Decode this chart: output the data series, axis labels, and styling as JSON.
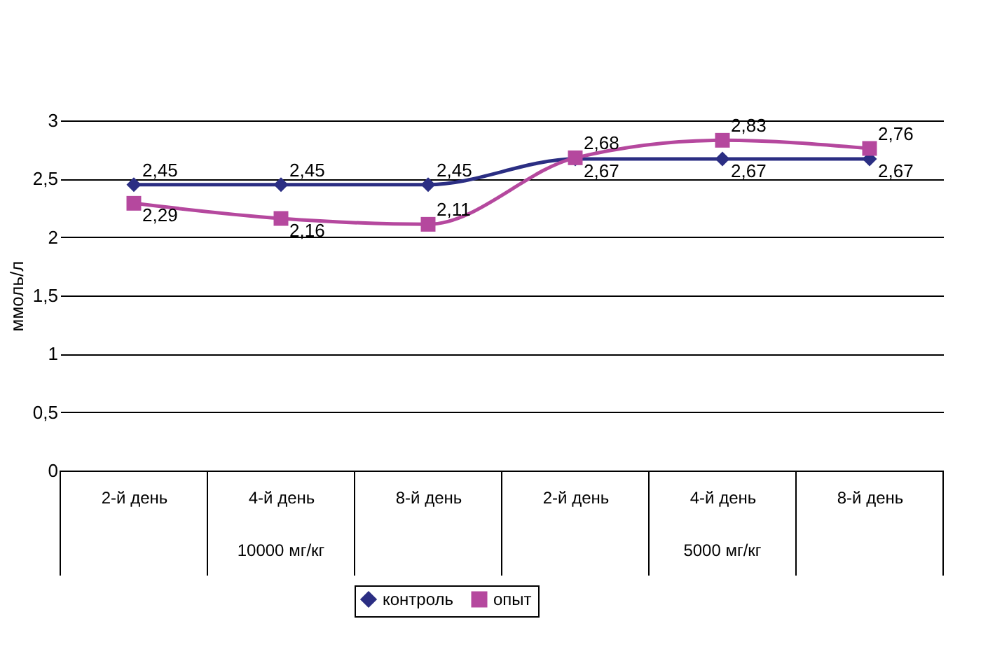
{
  "chart_data": {
    "type": "line",
    "ylabel": "ммоль/л",
    "categories": [
      "2-й день",
      "4-й день",
      "8-й день",
      "2-й день",
      "4-й день",
      "8-й день"
    ],
    "annotations": [
      "10000 мг/кг",
      "5000 мг/кг"
    ],
    "series": [
      {
        "name": "контроль",
        "color": "#2b2e83",
        "marker": "diamond",
        "values": [
          2.45,
          2.45,
          2.45,
          2.67,
          2.67,
          2.67
        ],
        "value_labels": [
          "2,45",
          "2,45",
          "2,45",
          "2,67",
          "2,67",
          "2,67"
        ]
      },
      {
        "name": "опыт",
        "color": "#b5489e",
        "marker": "square",
        "values": [
          2.29,
          2.16,
          2.11,
          2.68,
          2.83,
          2.76
        ],
        "value_labels": [
          "2,29",
          "2,16",
          "2,11",
          "2,68",
          "2,83",
          "2,76"
        ]
      }
    ],
    "ylim": [
      0,
      3
    ],
    "yticks": [
      0,
      {
        "value": 0.5,
        "label": "0,5"
      },
      1,
      {
        "value": 1.5,
        "label": "1,5"
      },
      2,
      {
        "value": 2.5,
        "label": "2,5"
      },
      3
    ],
    "grid": "y",
    "legend": "bottom"
  }
}
